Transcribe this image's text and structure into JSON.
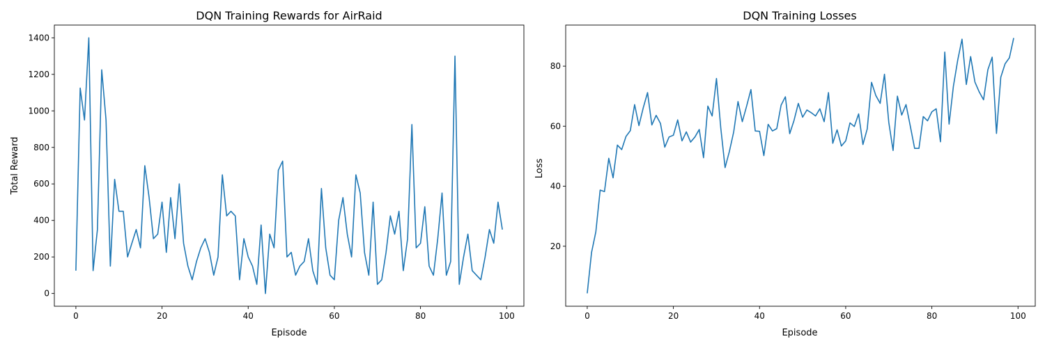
{
  "chart_data": [
    {
      "type": "line",
      "title": "DQN Training Rewards for AirRaid",
      "xlabel": "Episode",
      "ylabel": "Total Reward",
      "xlim": [
        -5,
        104
      ],
      "ylim": [
        -70,
        1470
      ],
      "xticks": [
        0,
        20,
        40,
        60,
        80,
        100
      ],
      "yticks": [
        0,
        200,
        400,
        600,
        800,
        1000,
        1200,
        1400
      ],
      "grid": false,
      "line_color": "#1f77b4",
      "series": [
        {
          "values": [
            125,
            1125,
            950,
            1400,
            125,
            350,
            1225,
            950,
            150,
            625,
            450,
            450,
            200,
            275,
            350,
            250,
            700,
            525,
            300,
            325,
            500,
            225,
            525,
            300,
            600,
            275,
            150,
            75,
            175,
            250,
            300,
            225,
            100,
            200,
            650,
            425,
            450,
            425,
            75,
            300,
            200,
            150,
            50,
            375,
            0,
            325,
            250,
            675,
            725,
            200,
            225,
            100,
            150,
            175,
            300,
            125,
            50,
            575,
            250,
            100,
            75,
            400,
            525,
            325,
            200,
            650,
            550,
            225,
            100,
            500,
            50,
            75,
            225,
            425,
            325,
            450,
            125,
            300,
            925,
            250,
            275,
            475,
            150,
            100,
            300,
            550,
            100,
            175,
            1300,
            50,
            200,
            325,
            125,
            100,
            75,
            200,
            350,
            275,
            500,
            350
          ]
        }
      ]
    },
    {
      "type": "line",
      "title": "DQN Training Losses",
      "xlabel": "Episode",
      "ylabel": "Loss",
      "xlim": [
        -5,
        104
      ],
      "ylim": [
        0,
        93.7
      ],
      "xticks": [
        0,
        20,
        40,
        60,
        80,
        100
      ],
      "yticks": [
        20,
        40,
        60,
        80
      ],
      "grid": false,
      "line_color": "#1f77b4",
      "series": [
        {
          "values": [
            4.3,
            17.9,
            24.8,
            38.7,
            38.2,
            49.3,
            42.8,
            53.7,
            52.2,
            56.6,
            58.5,
            67.2,
            60.2,
            66.1,
            71.2,
            60.4,
            63.6,
            60.9,
            53.0,
            56.4,
            57.0,
            62.1,
            55.1,
            58.1,
            54.7,
            56.4,
            58.9,
            49.5,
            66.7,
            63.4,
            75.9,
            59.4,
            46.2,
            51.6,
            58.1,
            68.2,
            61.5,
            66.7,
            72.2,
            58.4,
            58.3,
            50.2,
            60.6,
            58.4,
            59.2,
            67.0,
            69.8,
            57.5,
            61.9,
            67.6,
            63.0,
            65.4,
            64.5,
            63.4,
            65.8,
            61.5,
            71.2,
            54.3,
            58.8,
            53.4,
            55.1,
            61.1,
            59.9,
            64.1,
            53.9,
            59.1,
            74.6,
            70.2,
            67.6,
            77.3,
            61.3,
            51.9,
            70.0,
            63.7,
            67.2,
            60.0,
            52.6,
            52.6,
            63.2,
            61.8,
            64.8,
            65.8,
            54.8,
            84.7,
            60.7,
            73.3,
            82.0,
            89.0,
            73.9,
            83.2,
            74.7,
            71.4,
            68.8,
            78.8,
            83.0,
            57.6,
            76.3,
            80.8,
            82.8,
            89.4
          ]
        }
      ]
    }
  ]
}
